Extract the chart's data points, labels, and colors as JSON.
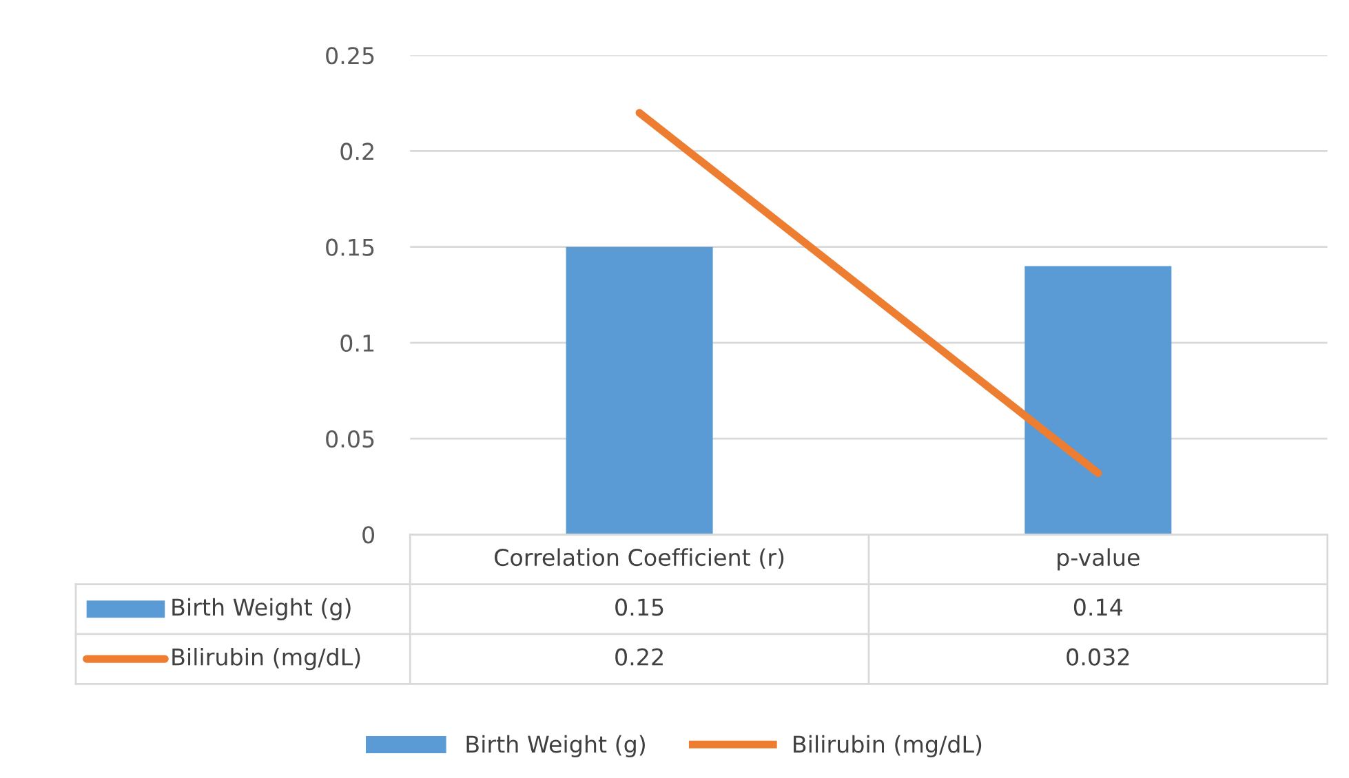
{
  "chart_data": {
    "type": "bar",
    "categories": [
      "Correlation Coefficient (r)",
      "p-value"
    ],
    "series": [
      {
        "name": "Birth Weight (g)",
        "color": "#5b9bd5",
        "values": [
          0.15,
          0.14
        ]
      },
      {
        "name": "Bilirubin (mg/dL)",
        "color": "#ed7d31",
        "values": [
          0.22,
          0.032
        ],
        "type": "line"
      }
    ],
    "ylim": [
      0,
      0.25
    ],
    "yticks": [
      0,
      0.05,
      0.1,
      0.15,
      0.2,
      0.25
    ],
    "grid": "y",
    "legend": "bottom",
    "data_labels": true,
    "marker": "none",
    "line_style": "solid"
  }
}
